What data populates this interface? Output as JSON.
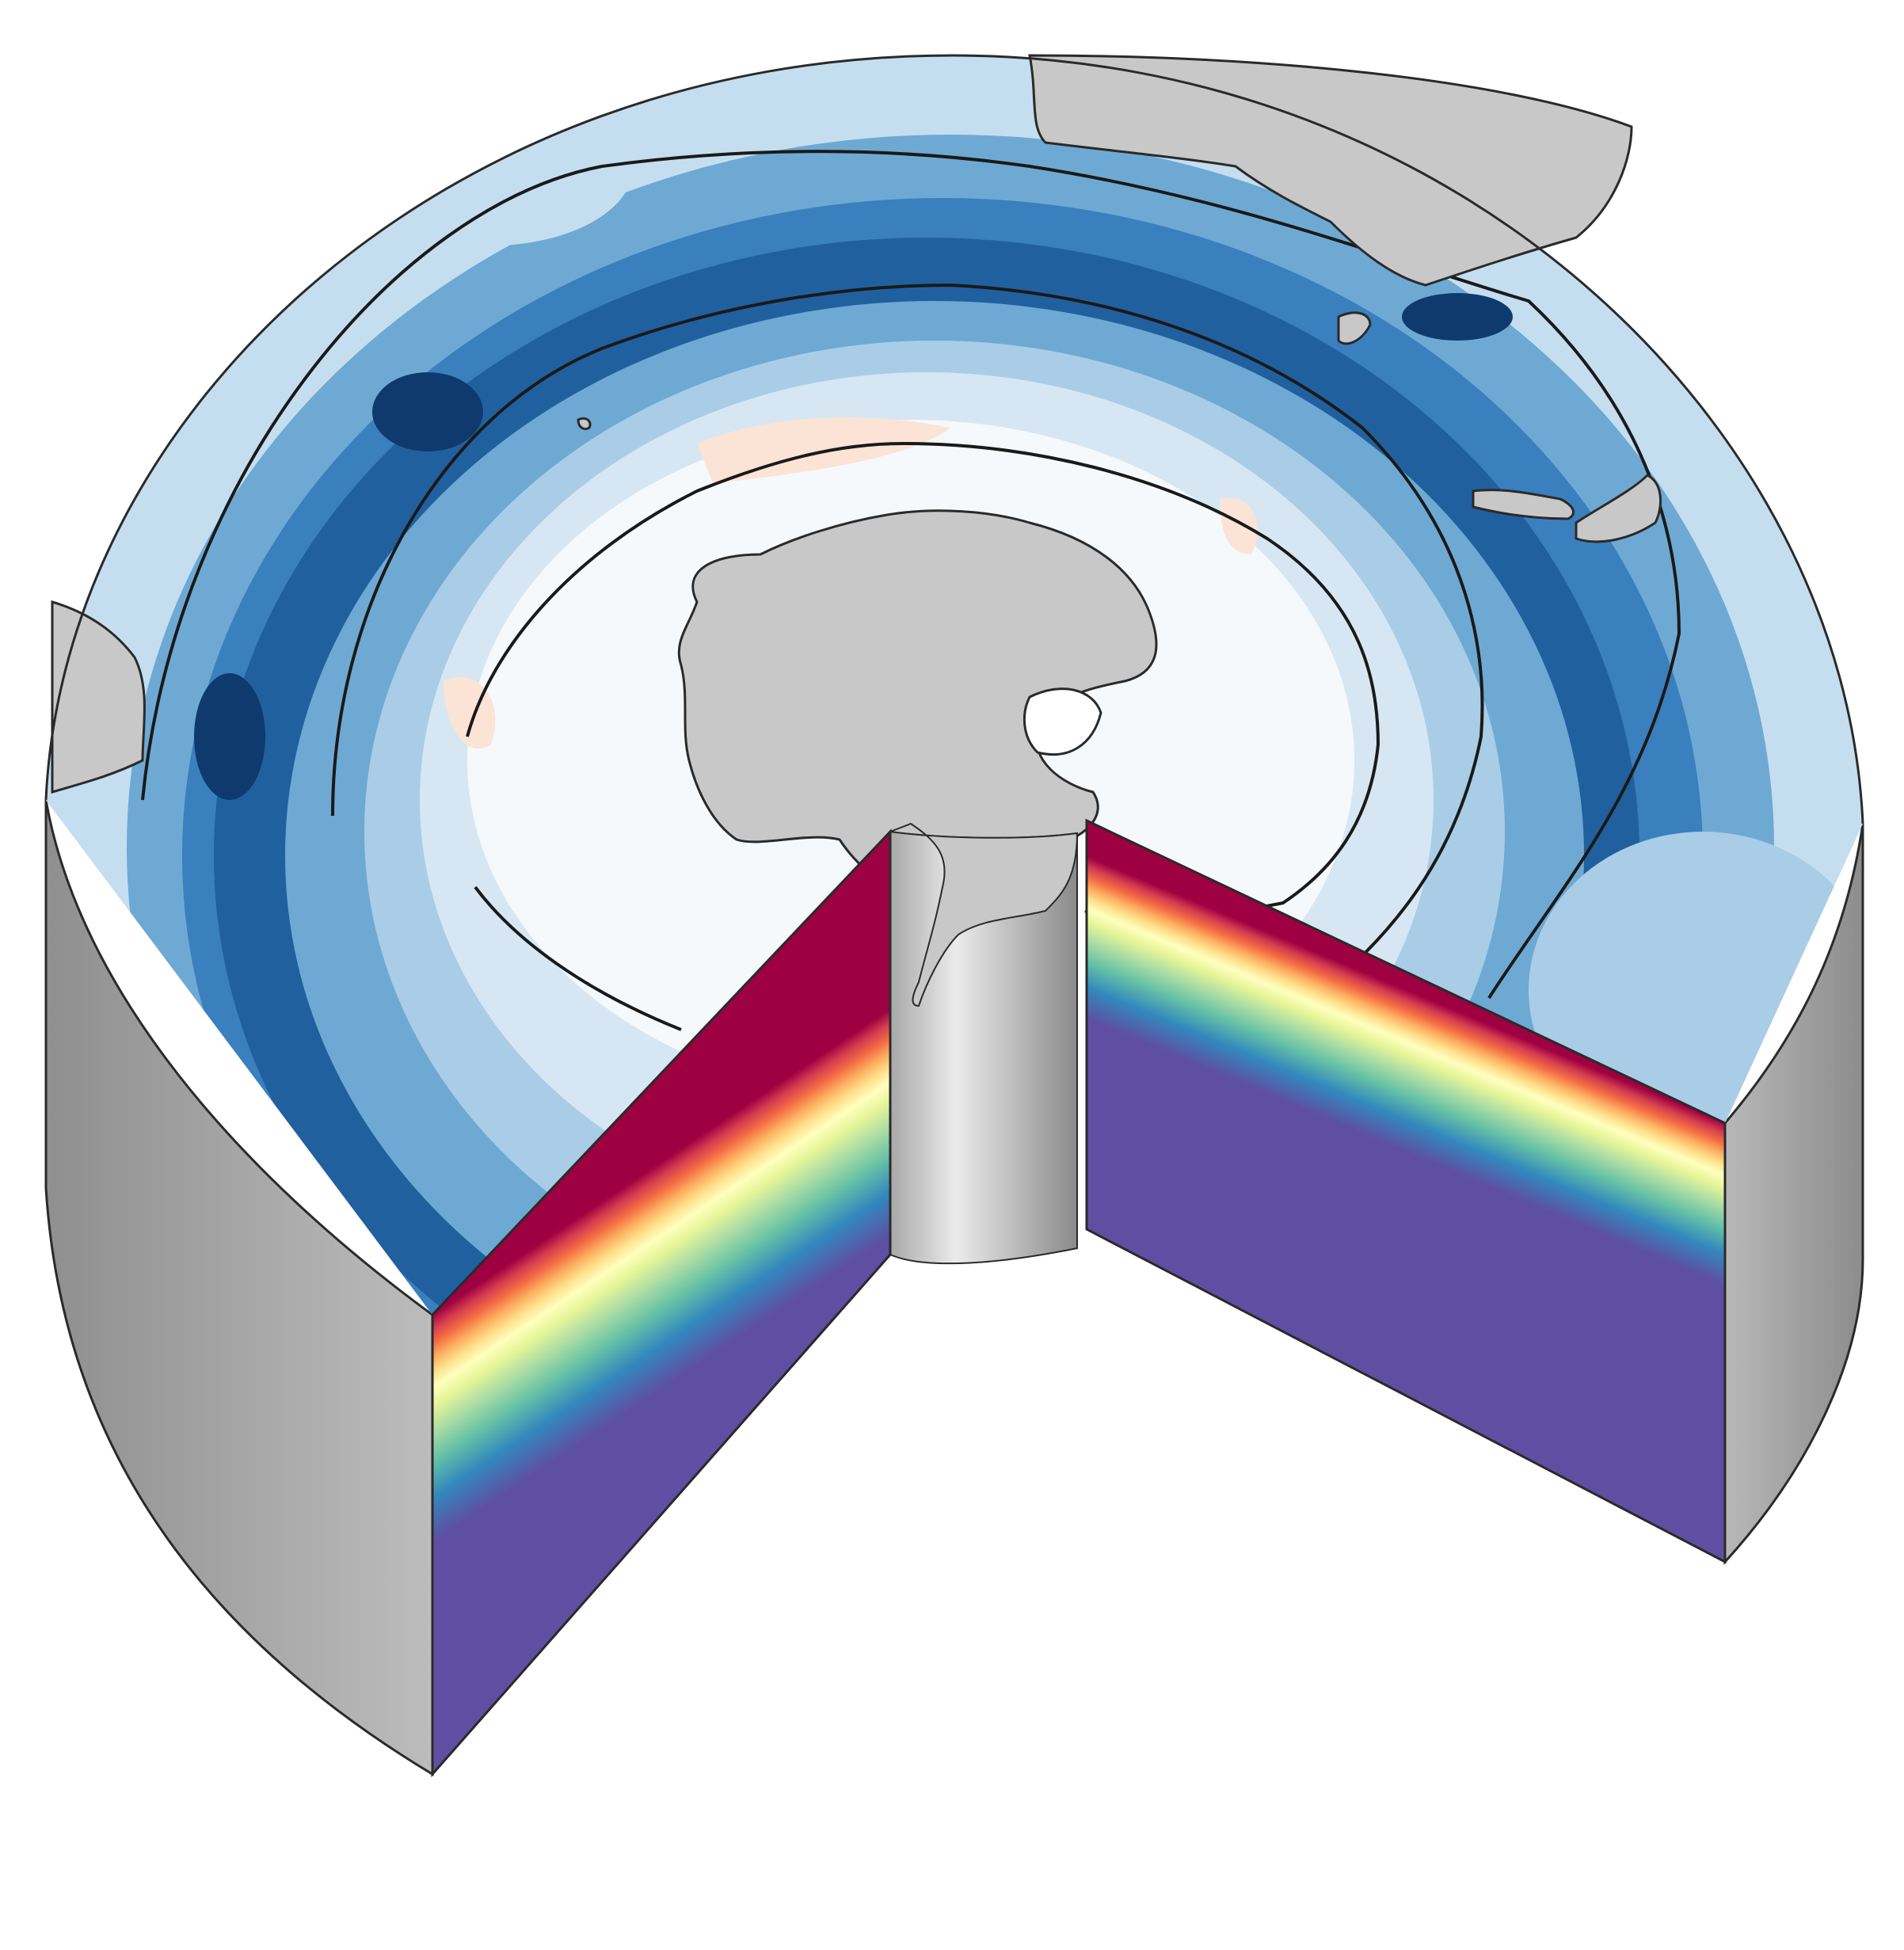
{
  "figure": {
    "type": "3d-cutaway-cylinder",
    "colors": {
      "background": "#ffffff",
      "land": "#c8c8c8",
      "land_outline": "#2a2a2a",
      "front_contours": "#1a1a1a",
      "cylinder_wall_dark": "#8c8c8c",
      "cylinder_wall_light": "#bdbdbd",
      "central_column_light": "#e6e6e6",
      "central_column_dark": "#8a8a8a",
      "ocean_white": "#f5f9fc",
      "ocean_pale": "#d6e7f3",
      "ocean_light": "#a9cde6",
      "ocean_mid": "#6ea9d3",
      "ocean_strong": "#3a7fbe",
      "ocean_deep": "#1d5a9a",
      "ocean_darkest": "#0e3a6e",
      "positive_pale": "#fbe3d6"
    },
    "surface_colormap": {
      "name": "RdBu",
      "colors": [
        "#0e3a6e",
        "#1d5a9a",
        "#3a7fbe",
        "#6ea9d3",
        "#a9cde6",
        "#d6e7f3",
        "#f5f9fc",
        "#fbe3d6"
      ]
    },
    "section_colormap": {
      "name": "Spectral_r",
      "colors": [
        "#9e0142",
        "#d53e4f",
        "#f46d43",
        "#fdae61",
        "#fee08b",
        "#ffffbf",
        "#e6f598",
        "#abdda4",
        "#66c2a5",
        "#3288bd",
        "#5e4fa2"
      ]
    },
    "map_labels": [],
    "cross_sections": [
      {
        "name": "left-section"
      },
      {
        "name": "right-section"
      }
    ]
  }
}
